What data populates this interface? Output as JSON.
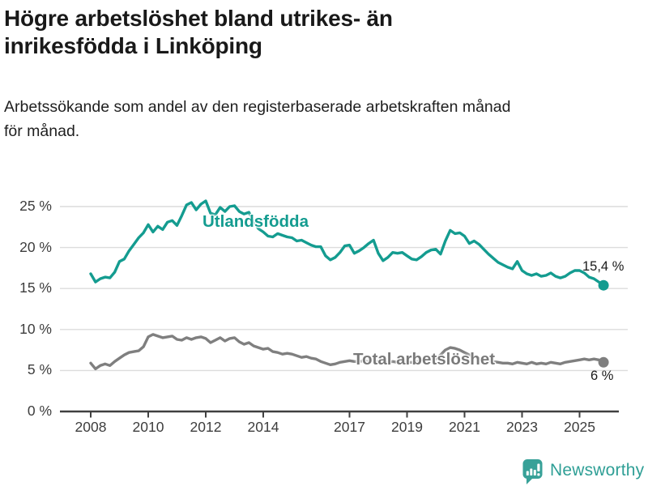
{
  "header": {
    "title_line1": "Högre arbetslöshet bland utrikes- än",
    "title_line2": "inrikesfödda i Linköping",
    "subtitle_line1": "Arbetssökande som andel av den registerbaserade arbetskraften månad",
    "subtitle_line2": "för månad."
  },
  "footer": {
    "brand": "Newsworthy"
  },
  "colors": {
    "series_foreign": "#149c90",
    "series_total": "#7f7f7f",
    "grid": "#dcdcdc",
    "axis": "#404040",
    "tick_text": "#3d3d3d",
    "annotation_text": "#1a1a1a",
    "logo": "#37a198"
  },
  "chart_data": {
    "type": "line",
    "title": "Högre arbetslöshet bland utrikes- än inrikesfödda i Linköping",
    "xlabel": "",
    "ylabel": "",
    "x_start_year": 2008,
    "x_step_months": 2,
    "x_end": 2025.83,
    "ylim": [
      0,
      26.5
    ],
    "grid": true,
    "legend_position": "inline-labels",
    "ytick_values": [
      0,
      5,
      10,
      15,
      20,
      25
    ],
    "ytick_labels": [
      "0 %",
      "5 %",
      "10 %",
      "15 %",
      "20 %",
      "25 %"
    ],
    "xtick_values": [
      2008,
      2010,
      2012,
      2014,
      2017,
      2019,
      2021,
      2023,
      2025
    ],
    "xtick_labels": [
      "2008",
      "2010",
      "2012",
      "2014",
      "2017",
      "2019",
      "2021",
      "2023",
      "2025"
    ],
    "series": [
      {
        "name": "Utlandsfödda",
        "color": "#149c90",
        "end_label": "15,4 %",
        "end_value": 15.4,
        "values": [
          16.8,
          15.8,
          16.2,
          16.4,
          16.3,
          17.0,
          18.3,
          18.6,
          19.6,
          20.4,
          21.2,
          21.8,
          22.8,
          21.9,
          22.6,
          22.2,
          23.1,
          23.3,
          22.7,
          23.9,
          25.2,
          25.5,
          24.6,
          25.3,
          25.7,
          24.2,
          24.0,
          24.9,
          24.4,
          25.0,
          25.1,
          24.4,
          24.1,
          24.3,
          23.2,
          22.3,
          21.9,
          21.4,
          21.3,
          21.7,
          21.5,
          21.3,
          21.2,
          20.8,
          20.9,
          20.6,
          20.3,
          20.1,
          20.1,
          19.0,
          18.5,
          18.8,
          19.4,
          20.2,
          20.3,
          19.3,
          19.6,
          20.0,
          20.5,
          20.9,
          19.3,
          18.4,
          18.8,
          19.4,
          19.3,
          19.4,
          19.0,
          18.6,
          18.5,
          18.9,
          19.4,
          19.7,
          19.8,
          19.2,
          20.8,
          22.1,
          21.7,
          21.8,
          21.4,
          20.5,
          20.8,
          20.4,
          19.8,
          19.2,
          18.7,
          18.2,
          17.9,
          17.6,
          17.4,
          18.3,
          17.2,
          16.8,
          16.6,
          16.8,
          16.5,
          16.6,
          16.9,
          16.5,
          16.3,
          16.5,
          16.9,
          17.2,
          17.2,
          16.9,
          16.4,
          16.2,
          15.8,
          15.4
        ]
      },
      {
        "name": "Total arbetslöshet",
        "color": "#7f7f7f",
        "end_label": "6 %",
        "end_value": 6.0,
        "values": [
          5.9,
          5.2,
          5.6,
          5.8,
          5.6,
          6.1,
          6.5,
          6.9,
          7.2,
          7.3,
          7.4,
          7.9,
          9.1,
          9.4,
          9.2,
          9.0,
          9.1,
          9.2,
          8.8,
          8.7,
          9.0,
          8.8,
          9.0,
          9.1,
          8.9,
          8.4,
          8.7,
          9.0,
          8.6,
          8.9,
          9.0,
          8.5,
          8.2,
          8.4,
          8.0,
          7.8,
          7.6,
          7.7,
          7.3,
          7.2,
          7.0,
          7.1,
          7.0,
          6.8,
          6.6,
          6.7,
          6.5,
          6.4,
          6.1,
          5.9,
          5.7,
          5.8,
          6.0,
          6.1,
          6.2,
          6.1,
          6.1,
          6.2,
          6.1,
          6.2,
          6.1,
          6.0,
          6.0,
          6.1,
          6.0,
          6.1,
          6.0,
          6.0,
          6.1,
          6.2,
          6.2,
          6.3,
          6.4,
          6.9,
          7.5,
          7.8,
          7.7,
          7.5,
          7.2,
          6.9,
          6.7,
          6.5,
          6.3,
          6.2,
          6.1,
          6.0,
          5.9,
          5.9,
          5.8,
          6.0,
          5.9,
          5.8,
          6.0,
          5.8,
          5.9,
          5.8,
          6.0,
          5.9,
          5.8,
          6.0,
          6.1,
          6.2,
          6.3,
          6.4,
          6.3,
          6.4,
          6.3,
          6.0
        ]
      }
    ]
  }
}
